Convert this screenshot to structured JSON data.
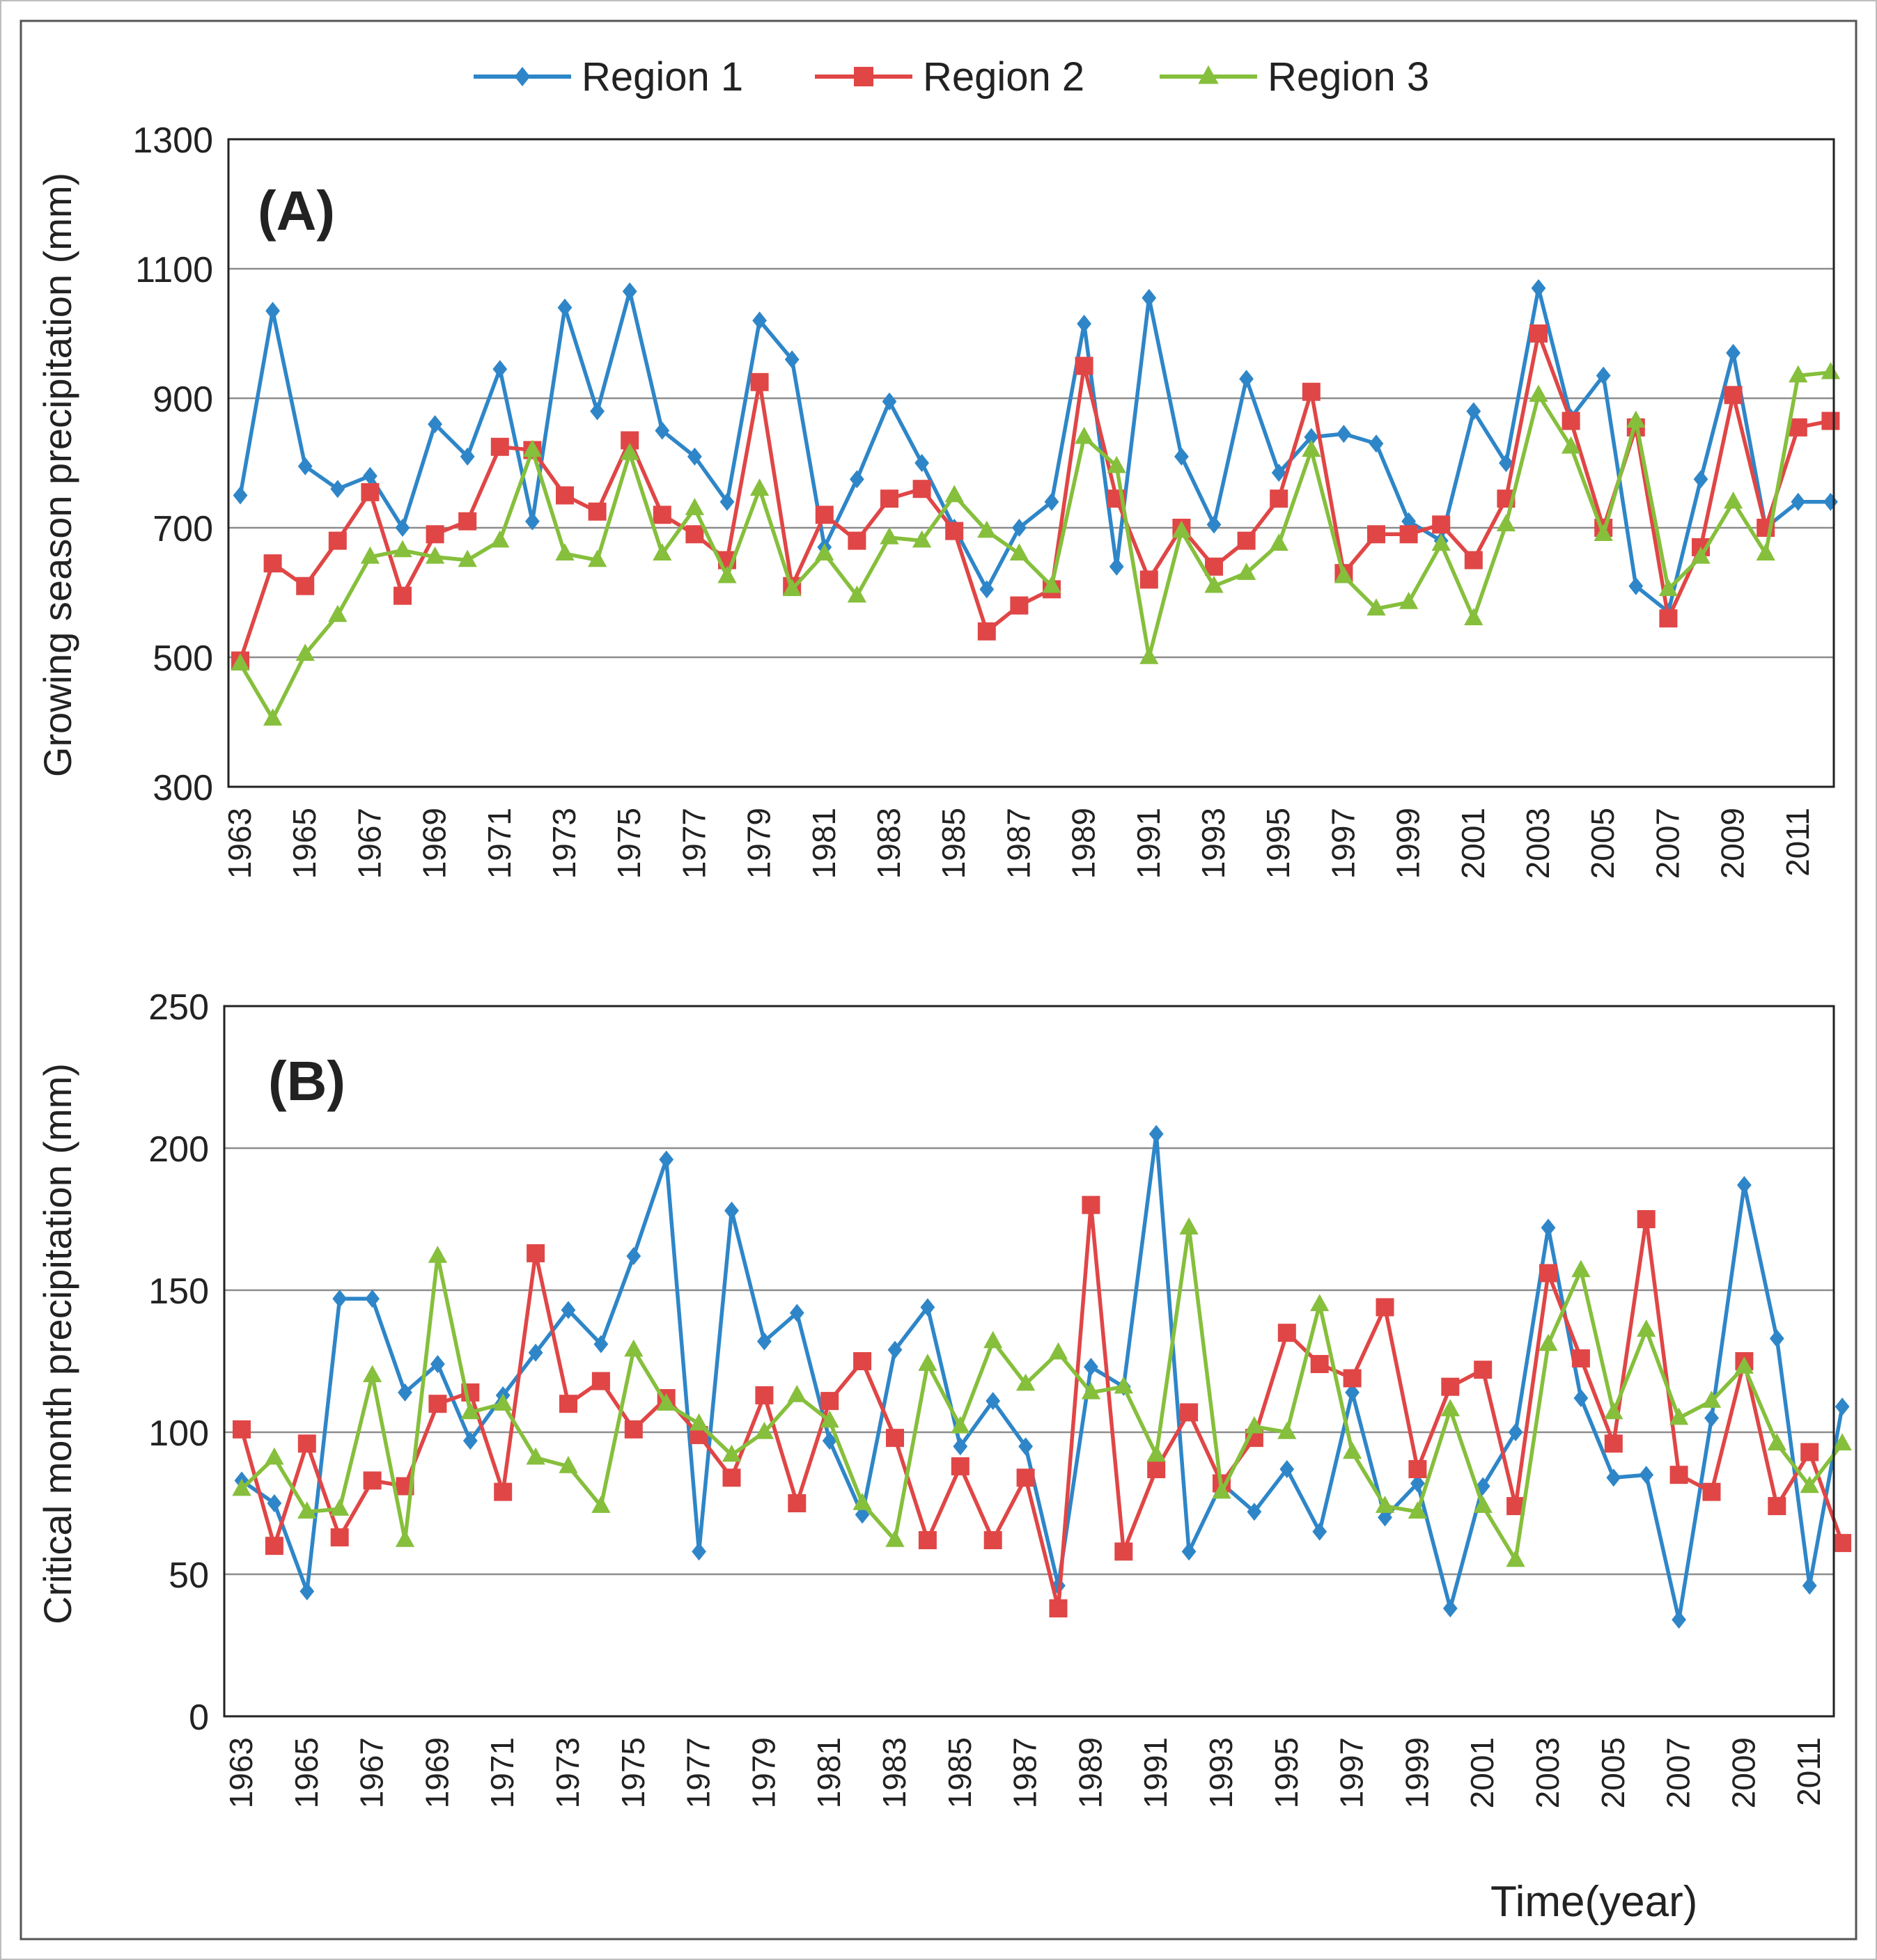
{
  "legend": [
    {
      "label": "Region 1",
      "color": "#2E86C8",
      "marker": "diamond"
    },
    {
      "label": "Region 2",
      "color": "#E04646",
      "marker": "square"
    },
    {
      "label": "Region 3",
      "color": "#86BF3C",
      "marker": "triangle"
    }
  ],
  "xlabel": "Time(year)",
  "chart_data": [
    {
      "type": "line",
      "panel_label": "(A)",
      "title": "",
      "xlabel": "",
      "ylabel": "Growing season precipitation (mm)",
      "ylim": [
        300,
        1300
      ],
      "yticks": [
        300,
        500,
        700,
        900,
        1100,
        1300
      ],
      "ytick_labels": [
        "300",
        "500",
        "700",
        "900",
        "1100",
        "1300"
      ],
      "xtick_labels": [
        "1963",
        "1965",
        "1967",
        "1969",
        "1971",
        "1973",
        "1975",
        "1977",
        "1979",
        "1981",
        "1983",
        "1985",
        "1987",
        "1989",
        "1991",
        "1993",
        "1995",
        "1997",
        "1999",
        "2001",
        "2003",
        "2005",
        "2007",
        "2009",
        "2011"
      ],
      "grid": true,
      "x": [
        1963,
        1964,
        1965,
        1966,
        1967,
        1968,
        1969,
        1970,
        1971,
        1972,
        1973,
        1974,
        1975,
        1976,
        1977,
        1978,
        1979,
        1980,
        1981,
        1982,
        1983,
        1984,
        1985,
        1986,
        1987,
        1988,
        1989,
        1990,
        1991,
        1992,
        1993,
        1994,
        1995,
        1996,
        1997,
        1998,
        1999,
        2000,
        2001,
        2002,
        2003,
        2004,
        2005,
        2006,
        2007,
        2008,
        2009,
        2010,
        2011,
        2012
      ],
      "series": [
        {
          "name": "Region 1",
          "values": [
            750,
            1035,
            795,
            760,
            780,
            700,
            860,
            810,
            945,
            710,
            1040,
            880,
            1065,
            850,
            810,
            740,
            1020,
            960,
            670,
            775,
            895,
            800,
            700,
            605,
            700,
            740,
            1015,
            640,
            1055,
            810,
            705,
            930,
            785,
            840,
            845,
            830,
            710,
            680,
            880,
            800,
            1070,
            870,
            935,
            610,
            570,
            775,
            970,
            700,
            740,
            740
          ]
        },
        {
          "name": "Region 2",
          "values": [
            495,
            645,
            610,
            680,
            755,
            595,
            690,
            710,
            825,
            820,
            750,
            725,
            835,
            720,
            690,
            650,
            925,
            610,
            720,
            680,
            745,
            760,
            695,
            540,
            580,
            605,
            950,
            745,
            620,
            700,
            640,
            680,
            745,
            910,
            630,
            690,
            690,
            705,
            650,
            745,
            1000,
            865,
            700,
            855,
            560,
            670,
            905,
            700,
            855,
            865
          ]
        },
        {
          "name": "Region 3",
          "values": [
            490,
            405,
            505,
            565,
            655,
            665,
            655,
            650,
            680,
            820,
            660,
            650,
            815,
            660,
            730,
            625,
            760,
            605,
            660,
            595,
            685,
            680,
            750,
            695,
            660,
            610,
            840,
            795,
            500,
            695,
            610,
            630,
            675,
            820,
            625,
            575,
            585,
            675,
            560,
            705,
            905,
            825,
            690,
            865,
            605,
            655,
            740,
            660,
            935,
            940
          ]
        }
      ]
    },
    {
      "type": "line",
      "panel_label": "(B)",
      "title": "",
      "xlabel": "Time(year)",
      "ylabel": "Critical month precipitation (mm)",
      "ylim": [
        0,
        250
      ],
      "yticks": [
        0,
        50,
        100,
        150,
        200,
        250
      ],
      "ytick_labels": [
        "0",
        "50",
        "100",
        "150",
        "200",
        "250"
      ],
      "xtick_labels": [
        "1963",
        "1965",
        "1967",
        "1969",
        "1971",
        "1973",
        "1975",
        "1977",
        "1979",
        "1981",
        "1983",
        "1985",
        "1987",
        "1989",
        "1991",
        "1993",
        "1995",
        "1997",
        "1999",
        "2001",
        "2003",
        "2005",
        "2007",
        "2009",
        "2011"
      ],
      "grid": true,
      "x": [
        1963,
        1964,
        1965,
        1966,
        1967,
        1968,
        1969,
        1970,
        1971,
        1972,
        1973,
        1974,
        1975,
        1976,
        1977,
        1978,
        1979,
        1980,
        1981,
        1982,
        1983,
        1984,
        1985,
        1986,
        1987,
        1988,
        1989,
        1990,
        1991,
        1992,
        1993,
        1994,
        1995,
        1996,
        1997,
        1998,
        1999,
        2000,
        2001,
        2002,
        2003,
        2004,
        2005,
        2006,
        2007,
        2008,
        2009,
        2010,
        2011,
        2012
      ],
      "series": [
        {
          "name": "Region 1",
          "values": [
            83,
            75,
            44,
            147,
            147,
            114,
            124,
            97,
            113,
            128,
            143,
            131,
            162,
            196,
            58,
            178,
            132,
            142,
            97,
            71,
            129,
            144,
            95,
            111,
            95,
            46,
            123,
            116,
            205,
            58,
            82,
            72,
            87,
            65,
            114,
            70,
            82,
            38,
            81,
            100,
            172,
            112,
            84,
            85,
            34,
            105,
            187,
            133,
            46,
            109
          ]
        },
        {
          "name": "Region 2",
          "values": [
            101,
            60,
            96,
            63,
            83,
            81,
            110,
            114,
            79,
            163,
            110,
            118,
            101,
            112,
            99,
            84,
            113,
            75,
            111,
            125,
            98,
            62,
            88,
            62,
            84,
            38,
            180,
            58,
            87,
            107,
            82,
            98,
            135,
            124,
            119,
            144,
            87,
            116,
            122,
            74,
            156,
            126,
            96,
            175,
            85,
            79,
            125,
            74,
            93,
            61
          ]
        },
        {
          "name": "Region 3",
          "values": [
            80,
            91,
            72,
            73,
            120,
            62,
            162,
            107,
            110,
            91,
            88,
            74,
            129,
            110,
            103,
            92,
            100,
            113,
            104,
            75,
            62,
            124,
            102,
            132,
            117,
            128,
            114,
            116,
            92,
            172,
            79,
            102,
            100,
            145,
            93,
            74,
            72,
            108,
            74,
            55,
            131,
            157,
            107,
            136,
            105,
            111,
            123,
            96,
            81,
            96
          ]
        }
      ]
    }
  ]
}
